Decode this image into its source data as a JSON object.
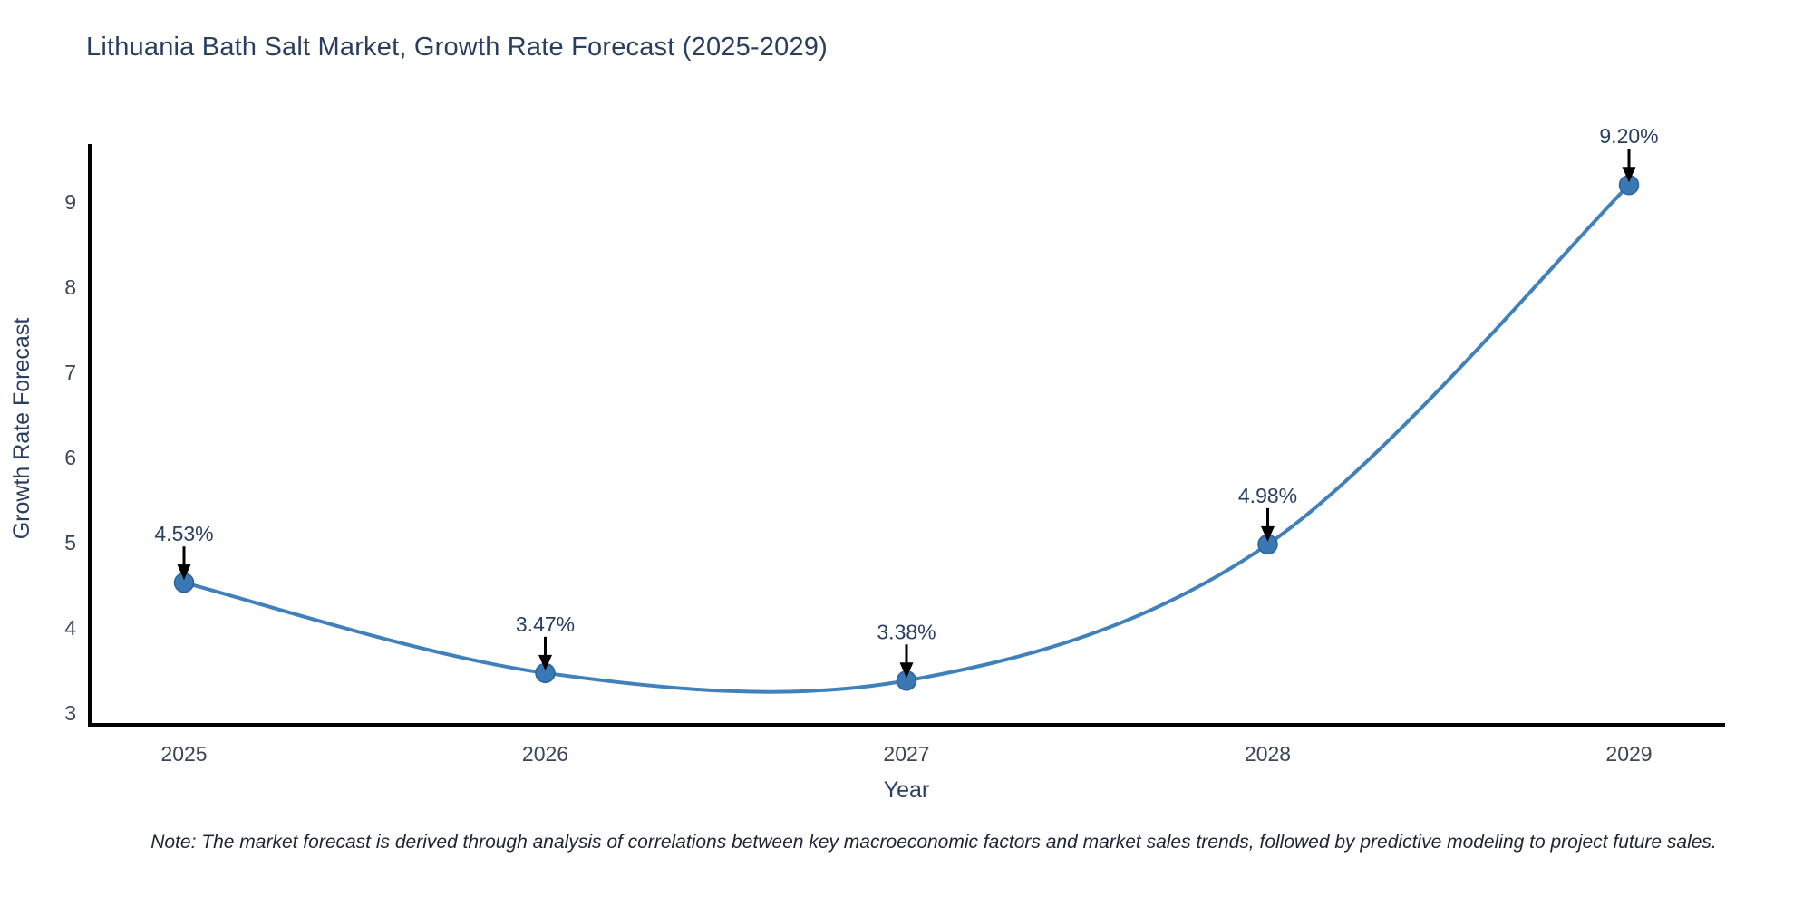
{
  "title": "Lithuania Bath Salt Market, Growth Rate Forecast (2025-2029)",
  "note": "Note: The market forecast is derived through analysis of correlations between key macroeconomic factors and market sales trends, followed by predictive modeling to project future sales.",
  "chart_data": {
    "type": "line",
    "title": "Lithuania Bath Salt Market, Growth Rate Forecast (2025-2029)",
    "xlabel": "Year",
    "ylabel": "Growth Rate Forecast",
    "x": [
      2025,
      2026,
      2027,
      2028,
      2029
    ],
    "values": [
      4.53,
      3.47,
      3.38,
      4.98,
      9.2
    ],
    "point_labels": [
      "4.53%",
      "3.47%",
      "3.38%",
      "4.98%",
      "9.20%"
    ],
    "categories": [
      "2025",
      "2026",
      "2027",
      "2028",
      "2029"
    ],
    "yticks": [
      3,
      4,
      5,
      6,
      7,
      8,
      9
    ],
    "ylim": [
      2.86,
      9.72
    ],
    "line_shape": "spline",
    "grid": false,
    "legend": "none",
    "colors": {
      "line": "#4181bb",
      "marker": "#3a78b3",
      "marker_edge": "#2d639a",
      "axis": "#000000",
      "tick_text": "#3c4658",
      "title_text": "#2a3f5f",
      "annotation_arrow": "#000000"
    }
  }
}
